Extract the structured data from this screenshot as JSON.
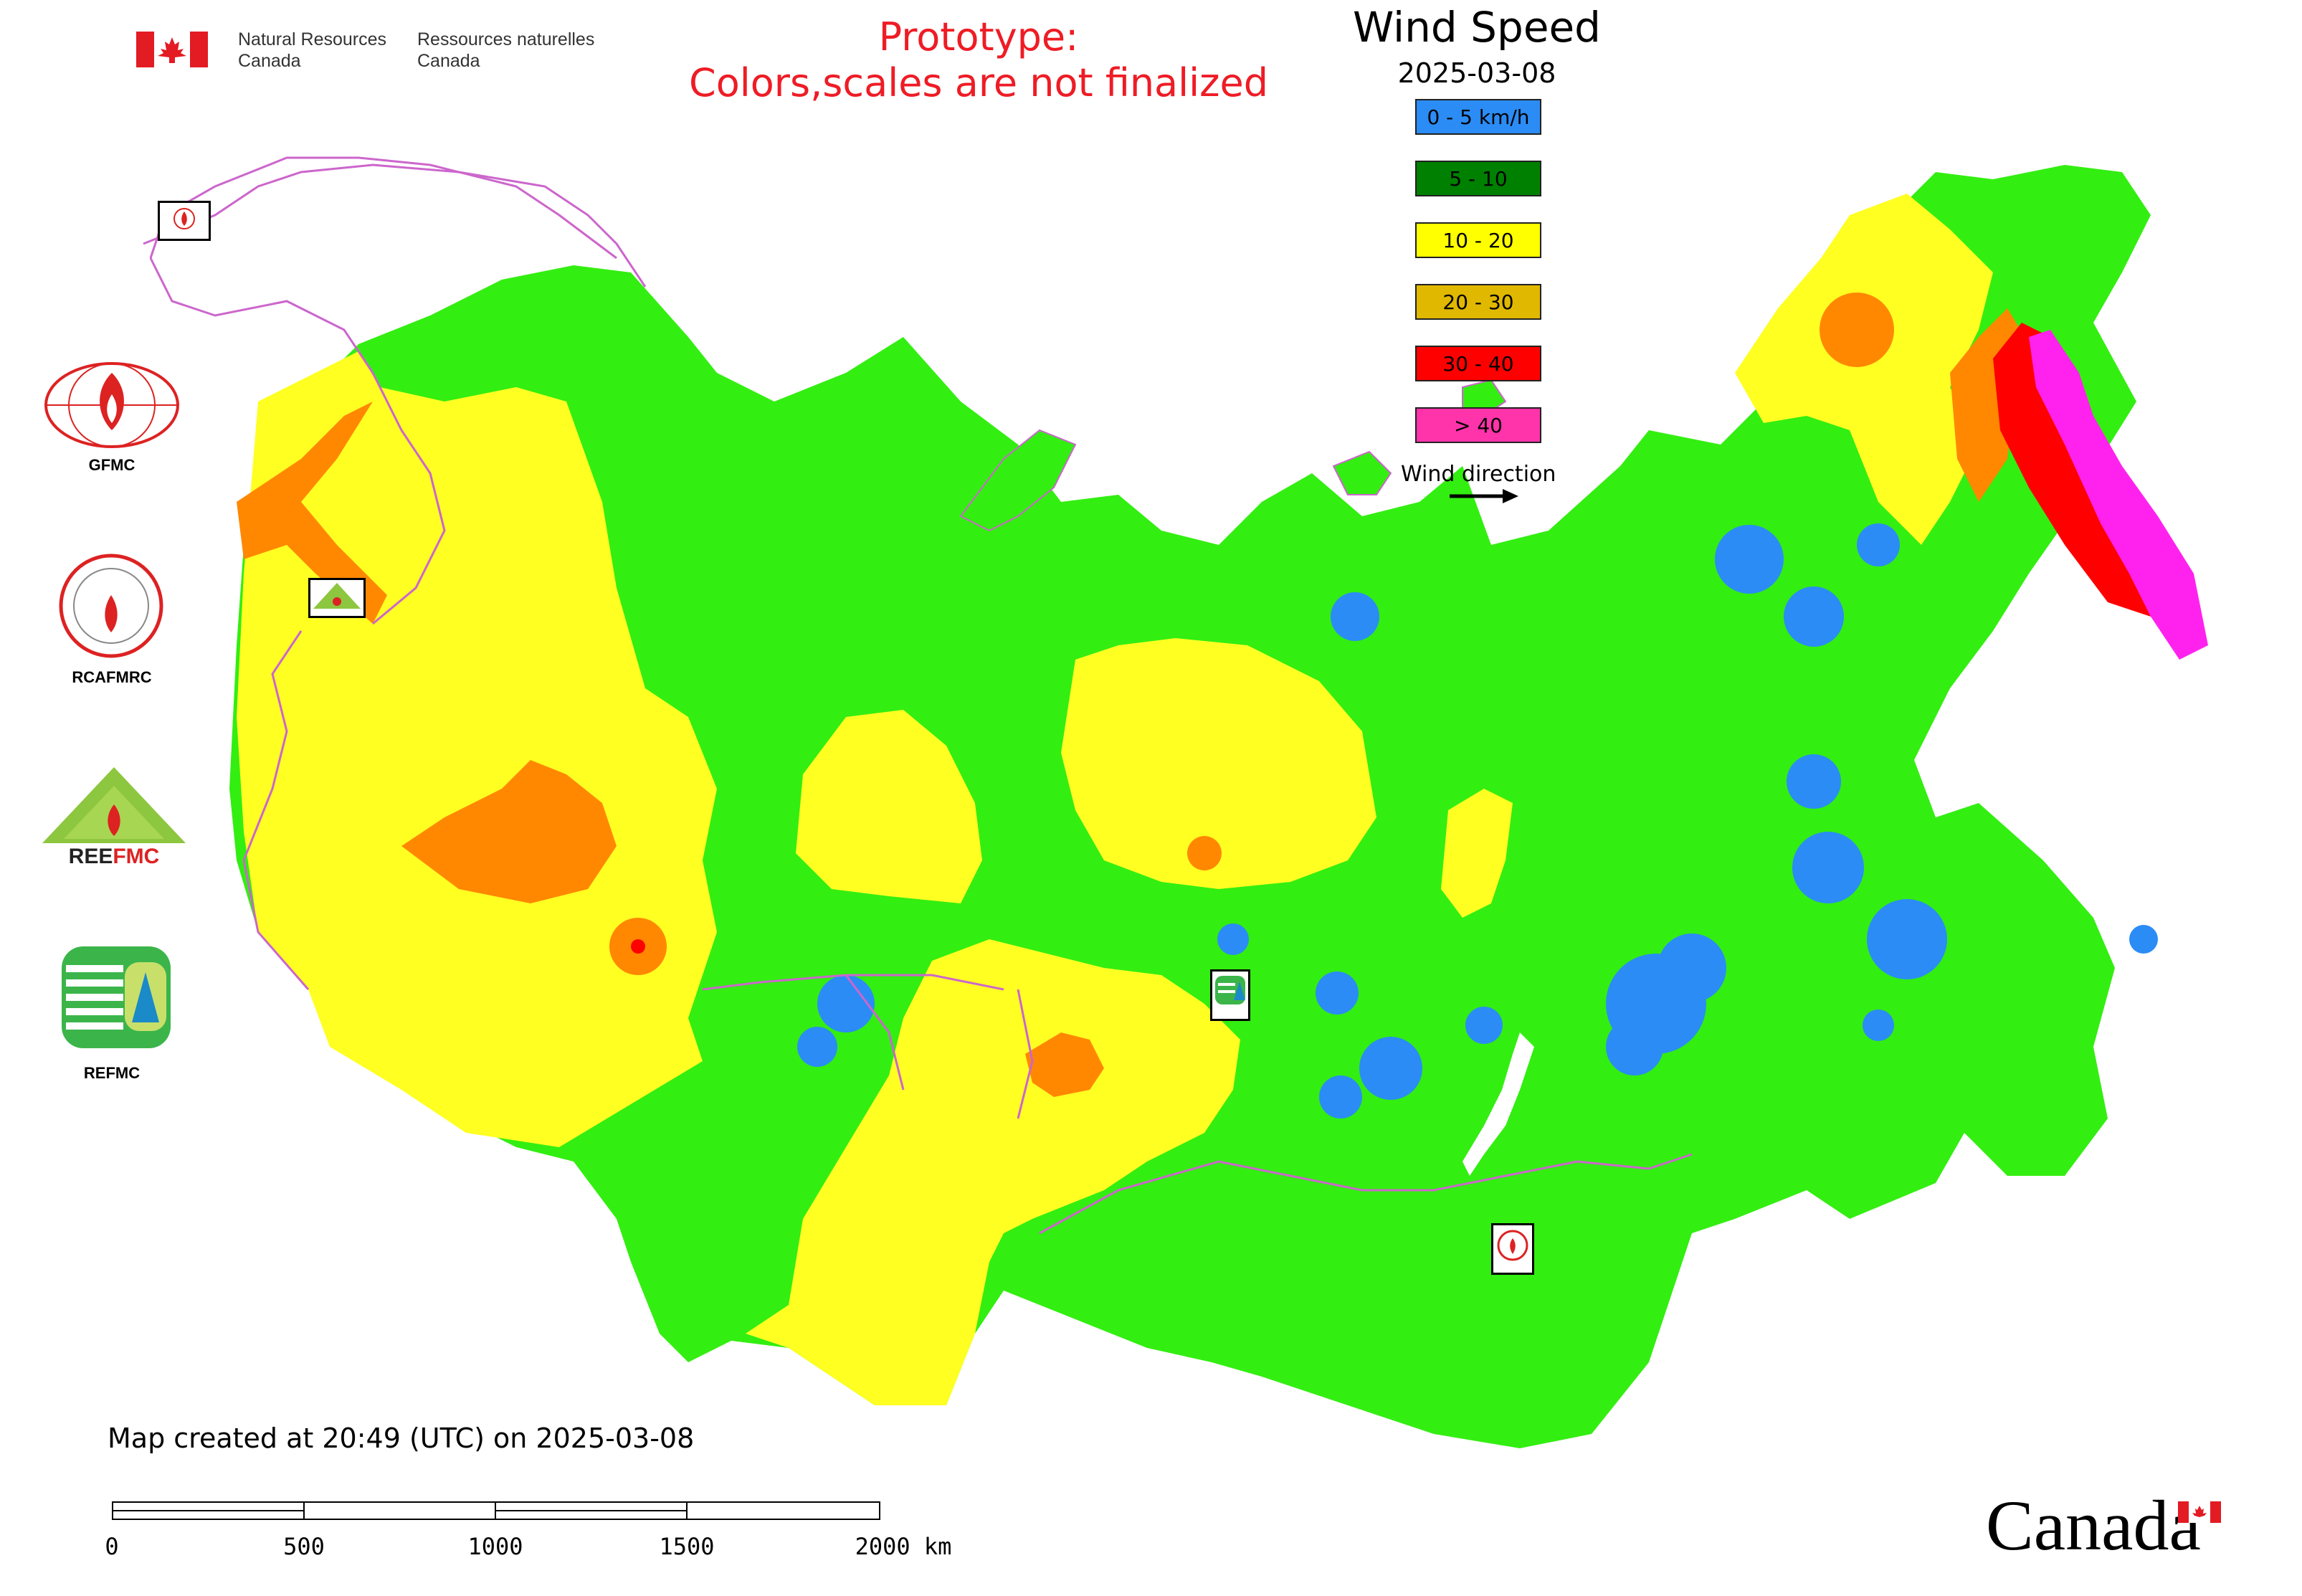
{
  "header": {
    "gov_en": "Natural Resources\nCanada",
    "gov_fr": "Ressources naturelles\nCanada",
    "prototype_line1": "Prototype:",
    "prototype_line2": "Colors,scales are not finalized",
    "title": "Wind Speed",
    "date": "2025-03-08"
  },
  "legend": {
    "items": [
      {
        "label": "0 - 5 km/h",
        "color": "#2b8cf5"
      },
      {
        "label": "5 - 10",
        "color": "#008000"
      },
      {
        "label": "10 - 20",
        "color": "#ffff00"
      },
      {
        "label": "20 - 30",
        "color": "#e0b800"
      },
      {
        "label": "30 - 40",
        "color": "#ff0000"
      },
      {
        "label": "> 40",
        "color": "#ff33aa"
      }
    ],
    "wind_direction_label": "Wind direction"
  },
  "colors": {
    "low_wind": "#2b8cf5",
    "green": "#33ee11",
    "yellow": "#ffff22",
    "orange": "#ff8800",
    "red": "#ff0000",
    "magenta": "#ff22ee",
    "borders": "#cc66cc"
  },
  "logos": {
    "gfmc": "GFMC",
    "rcafmrc": "RCAFMRC",
    "reefmc": "REEFMC",
    "refmc": "REFMC"
  },
  "footer": {
    "created": "Map created at 20:49 (UTC) on 2025-03-08",
    "scale_labels": [
      "0",
      "500",
      "1000",
      "1500",
      "2000 km"
    ],
    "canada_wordmark": "Canada"
  }
}
